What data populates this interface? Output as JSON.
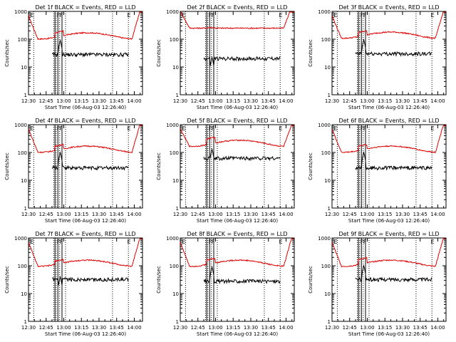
{
  "chart_data": {
    "type": "line",
    "y_scale": "log",
    "ylim": [
      1,
      1000
    ],
    "xlim_minutes": [
      0,
      97
    ],
    "x_tick_labels": [
      "12:30",
      "12:45",
      "13:00",
      "13:15",
      "13:30",
      "13:45",
      "14:00"
    ],
    "x_tick_minutes": [
      0,
      15,
      30,
      45,
      60,
      75,
      90
    ],
    "y_tick_labels": [
      "1",
      "10",
      "100",
      "1000"
    ],
    "y_tick_values": [
      1,
      10,
      100,
      1000
    ],
    "ylabel": "Counts/sec",
    "xlabel": "Start Time (06-Aug-03 12:26:40)",
    "flag_letters": [
      "E",
      "F",
      "E"
    ],
    "panels": [
      {
        "title": "Det 1f BLACK = Events, RED = LLD",
        "events_level": 28,
        "lld_level": 160,
        "events_peak": 90,
        "lld_peak": 230
      },
      {
        "title": "Det 2f BLACK = Events, RED = LLD",
        "events_level": 20,
        "lld_level": 250,
        "events_peak": 22,
        "lld_peak": 260
      },
      {
        "title": "Det 3f BLACK = Events, RED = LLD",
        "events_level": 30,
        "lld_level": 170,
        "events_peak": 95,
        "lld_peak": 240
      },
      {
        "title": "Det 4f BLACK = Events, RED = LLD",
        "events_level": 28,
        "lld_level": 160,
        "events_peak": 100,
        "lld_peak": 230
      },
      {
        "title": "Det 5f BLACK = Events, RED = LLD",
        "events_level": 62,
        "lld_level": 260,
        "events_peak": 130,
        "lld_peak": 420
      },
      {
        "title": "Det 6f BLACK = Events, RED = LLD",
        "events_level": 28,
        "lld_level": 160,
        "events_peak": 100,
        "lld_peak": 230
      },
      {
        "title": "Det 7f BLACK = Events, RED = LLD",
        "events_level": 32,
        "lld_level": 150,
        "events_peak": 40,
        "lld_peak": 200
      },
      {
        "title": "Det 8f BLACK = Events, RED = LLD",
        "events_level": 28,
        "lld_level": 150,
        "events_peak": 90,
        "lld_peak": 220
      },
      {
        "title": "Det 9f BLACK = Events, RED = LLD",
        "events_level": 32,
        "lld_level": 150,
        "events_peak": 100,
        "lld_peak": 230
      }
    ],
    "series_colors": {
      "events": "#000000",
      "lld": "#e00000"
    }
  }
}
